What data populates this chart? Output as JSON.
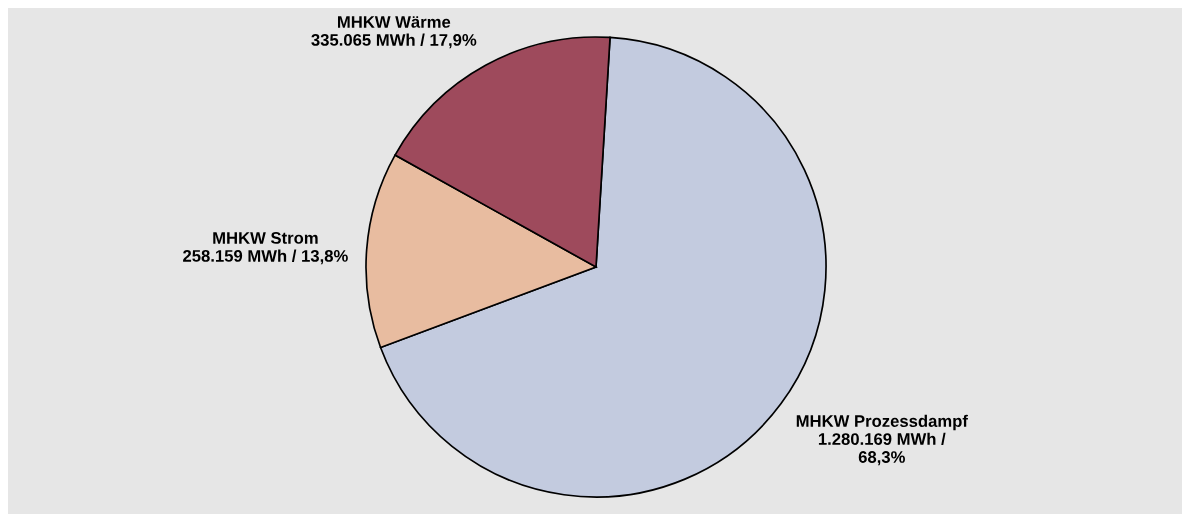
{
  "chart_data": {
    "type": "pie",
    "categories": [
      "MHKW Prozessdampf",
      "MHKW Strom",
      "MHKW Wärme"
    ],
    "values": [
      1280169,
      258159,
      335065
    ],
    "value_labels": [
      "1.280.169 MWh /\n68,3%",
      "258.159 MWh / 13,8%",
      "335.065 MWh / 17,9%"
    ],
    "colors": [
      "#c3cbdf",
      "#e8bca0",
      "#9e4a5c"
    ],
    "legend": false
  }
}
